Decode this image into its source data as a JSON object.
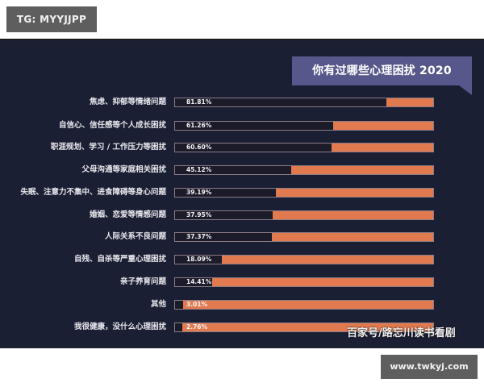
{
  "header": {
    "tg_label": "TG: MYYJJPP"
  },
  "footer": {
    "site_label": "www.twkyj.com"
  },
  "watermark": "百家号/路忘川读书看剧",
  "colors": {
    "panel_bg": "#1b1f33",
    "title_bg": "#56578a",
    "bar_fill": "#e27a4f",
    "bar_outline": "#8a7c86"
  },
  "chart_data": {
    "type": "bar",
    "orientation": "horizontal",
    "title": "你有过哪些心理困扰 2020",
    "xlabel": "",
    "ylabel": "",
    "xlim": [
      0,
      100
    ],
    "grid": false,
    "legend": null,
    "categories": [
      "焦虑、抑郁等情绪问题",
      "自信心、信任感等个人成长困扰",
      "职涯规划、学习 / 工作压力等困扰",
      "父母沟通等家庭相关困扰",
      "失眠、注意力不集中、进食障碍等身心问题",
      "婚姻、恋爱等情感问题",
      "人际关系不良问题",
      "自残、自杀等严重心理困扰",
      "亲子养育问题",
      "其他",
      "我很健康，没什么心理困扰"
    ],
    "values": [
      81.81,
      61.26,
      60.6,
      45.12,
      39.19,
      37.95,
      37.37,
      18.09,
      14.41,
      3.01,
      2.76
    ],
    "value_labels": [
      "81.81%",
      "61.26%",
      "60.60%",
      "45.12%",
      "39.19%",
      "37.95%",
      "37.37%",
      "18.09%",
      "14.41%",
      "3.01%",
      "2.76%"
    ],
    "unit": "%"
  }
}
